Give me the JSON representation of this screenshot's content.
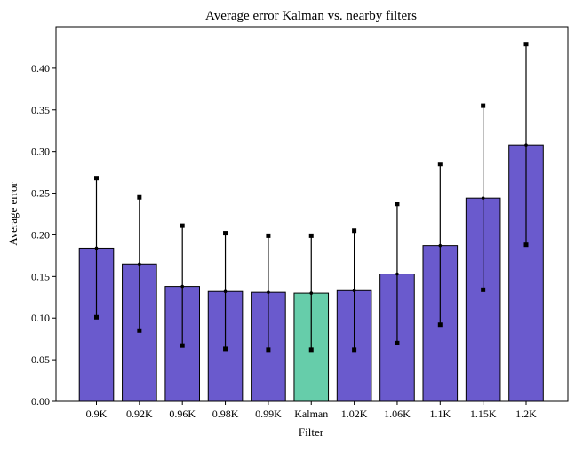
{
  "chart_data": {
    "type": "bar",
    "title": "Average error Kalman vs. nearby filters",
    "xlabel": "Filter",
    "ylabel": "Average error",
    "categories": [
      "0.9K",
      "0.92K",
      "0.96K",
      "0.98K",
      "0.99K",
      "Kalman",
      "1.02K",
      "1.06K",
      "1.1K",
      "1.15K",
      "1.2K"
    ],
    "values": [
      0.184,
      0.165,
      0.138,
      0.132,
      0.131,
      0.13,
      0.133,
      0.153,
      0.187,
      0.244,
      0.308
    ],
    "error_low": [
      0.101,
      0.085,
      0.067,
      0.063,
      0.062,
      0.062,
      0.062,
      0.07,
      0.092,
      0.134,
      0.188
    ],
    "error_high": [
      0.268,
      0.245,
      0.211,
      0.202,
      0.199,
      0.199,
      0.205,
      0.237,
      0.285,
      0.355,
      0.429
    ],
    "ylim": [
      0,
      0.45
    ],
    "yticks": [
      "0.00",
      "0.05",
      "0.10",
      "0.15",
      "0.20",
      "0.25",
      "0.30",
      "0.35",
      "0.40"
    ],
    "grid": false,
    "colors": {
      "bar": "#6a5acd",
      "highlight": "#66cdaa",
      "edge": "#000000"
    },
    "highlight_category": "Kalman"
  }
}
